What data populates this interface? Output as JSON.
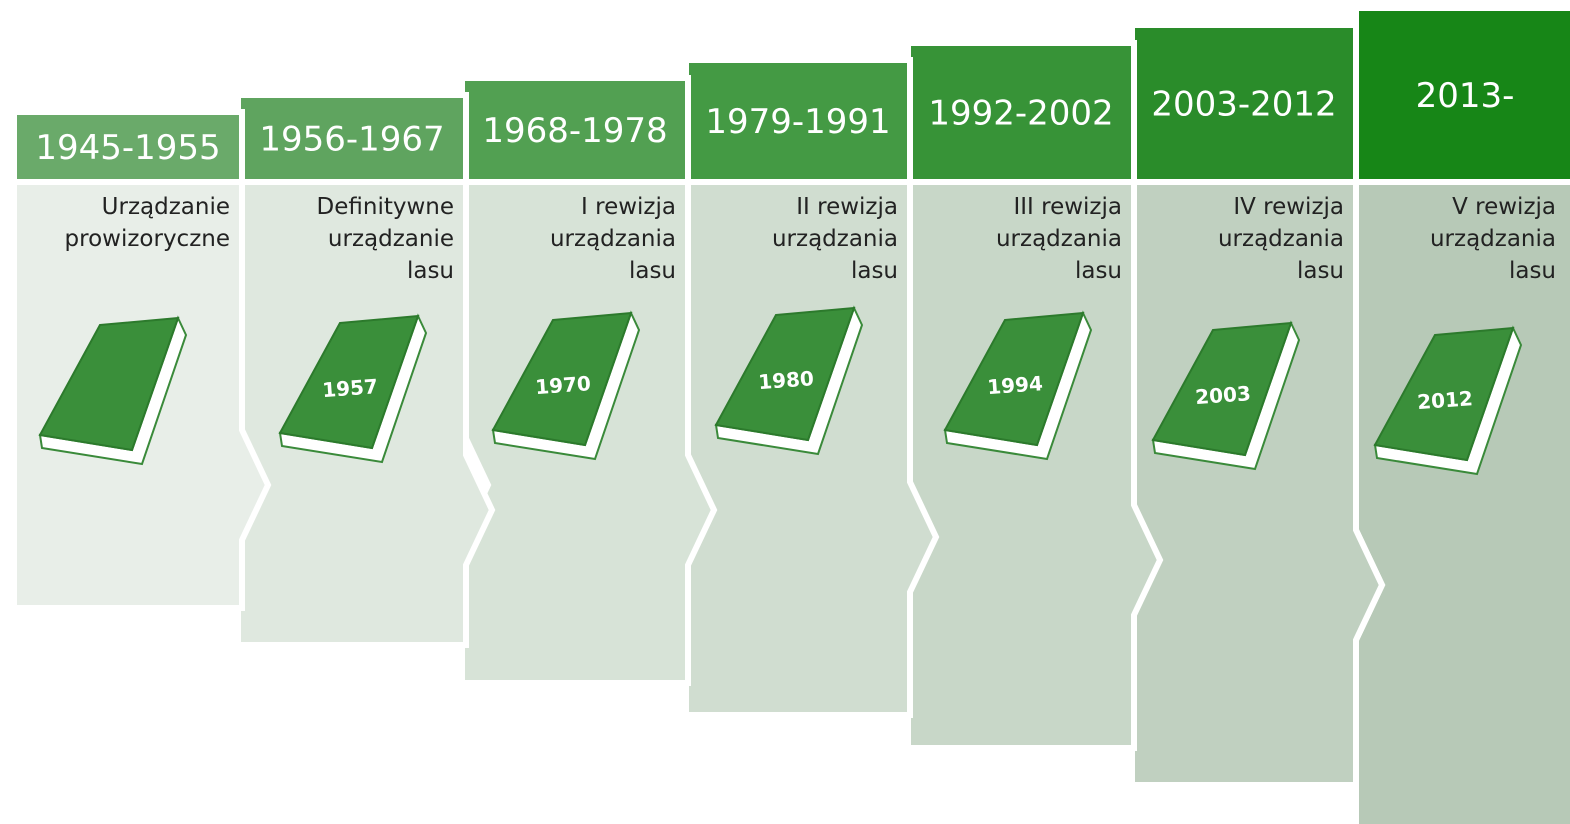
{
  "panels": [
    {
      "period": "1945-1955",
      "description": [
        "Urządzanie",
        "prowizoryczne"
      ]
    },
    {
      "period": "1956-1967",
      "description": [
        "Definitywne",
        "urządzanie",
        "lasu"
      ],
      "book": "1957"
    },
    {
      "period": "1968-1978",
      "description": [
        "I rewizja",
        "urządzania",
        "lasu"
      ],
      "book": "1970"
    },
    {
      "period": "1979-1991",
      "description": [
        "II rewizja",
        "urządzania",
        "lasu"
      ],
      "book": "1980"
    },
    {
      "period": "1992-2002",
      "description": [
        "III rewizja",
        "urządzania",
        "lasu"
      ],
      "book": "1994"
    },
    {
      "period": "2003-2012",
      "description": [
        "IV rewizja",
        "urządzania",
        "lasu"
      ],
      "book": "2003"
    },
    {
      "period": "2013-",
      "description": [
        "V rewizja",
        "urządzania",
        "lasu"
      ],
      "book": "2012"
    }
  ]
}
